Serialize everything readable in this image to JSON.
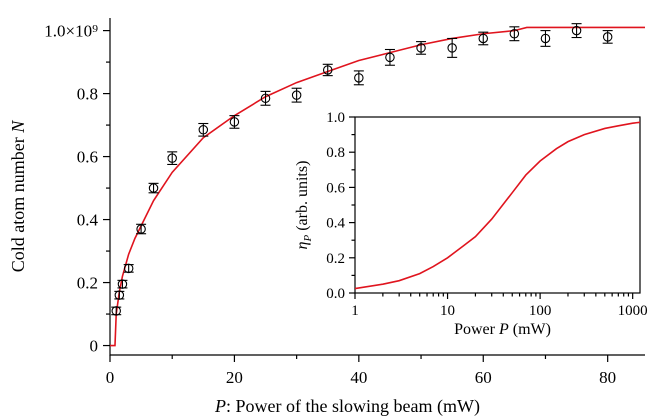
{
  "colors": {
    "fit": "#e0141e",
    "points": "#000000"
  },
  "chart_data": [
    {
      "type": "scatter",
      "title": "",
      "xlabel_italic": "P",
      "xlabel_rest": ": Power of the slowing beam (mW)",
      "ylabel_text": "Cold atom number ",
      "ylabel_italic": "N",
      "xlim": [
        0,
        86
      ],
      "ylim": [
        -0.03,
        1.04
      ],
      "x_ticks": [
        0,
        20,
        40,
        60,
        80
      ],
      "x_tick_labels": [
        "0",
        "20",
        "40",
        "60",
        "80"
      ],
      "y_ticks": [
        0,
        0.2,
        0.4,
        0.6,
        0.8,
        1.0
      ],
      "y_tick_labels": [
        "0",
        "0.2",
        "0.4",
        "0.6",
        "0.8",
        "1.0×10⁹"
      ],
      "series": [
        {
          "kind": "points",
          "x": [
            1,
            1.5,
            2,
            3,
            5,
            7,
            10,
            15,
            20,
            25,
            30,
            35,
            40,
            45,
            50,
            55,
            60,
            65,
            70,
            75,
            80
          ],
          "y": [
            0.11,
            0.16,
            0.195,
            0.245,
            0.37,
            0.5,
            0.595,
            0.685,
            0.71,
            0.785,
            0.795,
            0.875,
            0.85,
            0.915,
            0.945,
            0.945,
            0.975,
            0.99,
            0.975,
            1.0,
            0.98
          ],
          "yerr": [
            0.012,
            0.012,
            0.012,
            0.012,
            0.015,
            0.015,
            0.02,
            0.02,
            0.02,
            0.022,
            0.022,
            0.018,
            0.022,
            0.025,
            0.02,
            0.03,
            0.02,
            0.022,
            0.025,
            0.022,
            0.02
          ]
        },
        {
          "kind": "line",
          "x": [
            0,
            0.8,
            1,
            1.5,
            2,
            3,
            4,
            5,
            7,
            10,
            15,
            20,
            25,
            30,
            35,
            40,
            45,
            50,
            55,
            60,
            65,
            67,
            70,
            86
          ],
          "y": [
            0,
            0,
            0.1,
            0.17,
            0.22,
            0.29,
            0.34,
            0.38,
            0.46,
            0.55,
            0.66,
            0.73,
            0.79,
            0.835,
            0.87,
            0.905,
            0.93,
            0.955,
            0.975,
            0.99,
            1.0,
            1.01,
            1.01,
            1.01
          ]
        }
      ]
    },
    {
      "type": "line",
      "title": "",
      "xlabel_text": "Power ",
      "xlabel_italic": "P",
      "xlabel_rest": " (mW)",
      "ylabel_eta": "η",
      "ylabel_sub": "P",
      "ylabel_rest": " (arb. units)",
      "x_scale": "log",
      "xlim": [
        1,
        1200
      ],
      "ylim": [
        0,
        1.0
      ],
      "x_ticks": [
        1,
        10,
        100,
        1000
      ],
      "x_tick_labels": [
        "1",
        "10",
        "100",
        "1000"
      ],
      "y_ticks": [
        0,
        0.2,
        0.4,
        0.6,
        0.8,
        1.0
      ],
      "y_tick_labels": [
        "0.0",
        "0.2",
        "0.4",
        "0.6",
        "0.8",
        "1.0"
      ],
      "series": [
        {
          "kind": "line",
          "x": [
            1,
            2,
            3,
            5,
            7,
            10,
            15,
            20,
            30,
            50,
            70,
            100,
            150,
            200,
            300,
            500,
            700,
            1000,
            1200
          ],
          "y": [
            0.025,
            0.05,
            0.07,
            0.11,
            0.15,
            0.2,
            0.27,
            0.32,
            0.42,
            0.57,
            0.67,
            0.75,
            0.82,
            0.86,
            0.9,
            0.935,
            0.95,
            0.965,
            0.97
          ]
        }
      ]
    }
  ]
}
